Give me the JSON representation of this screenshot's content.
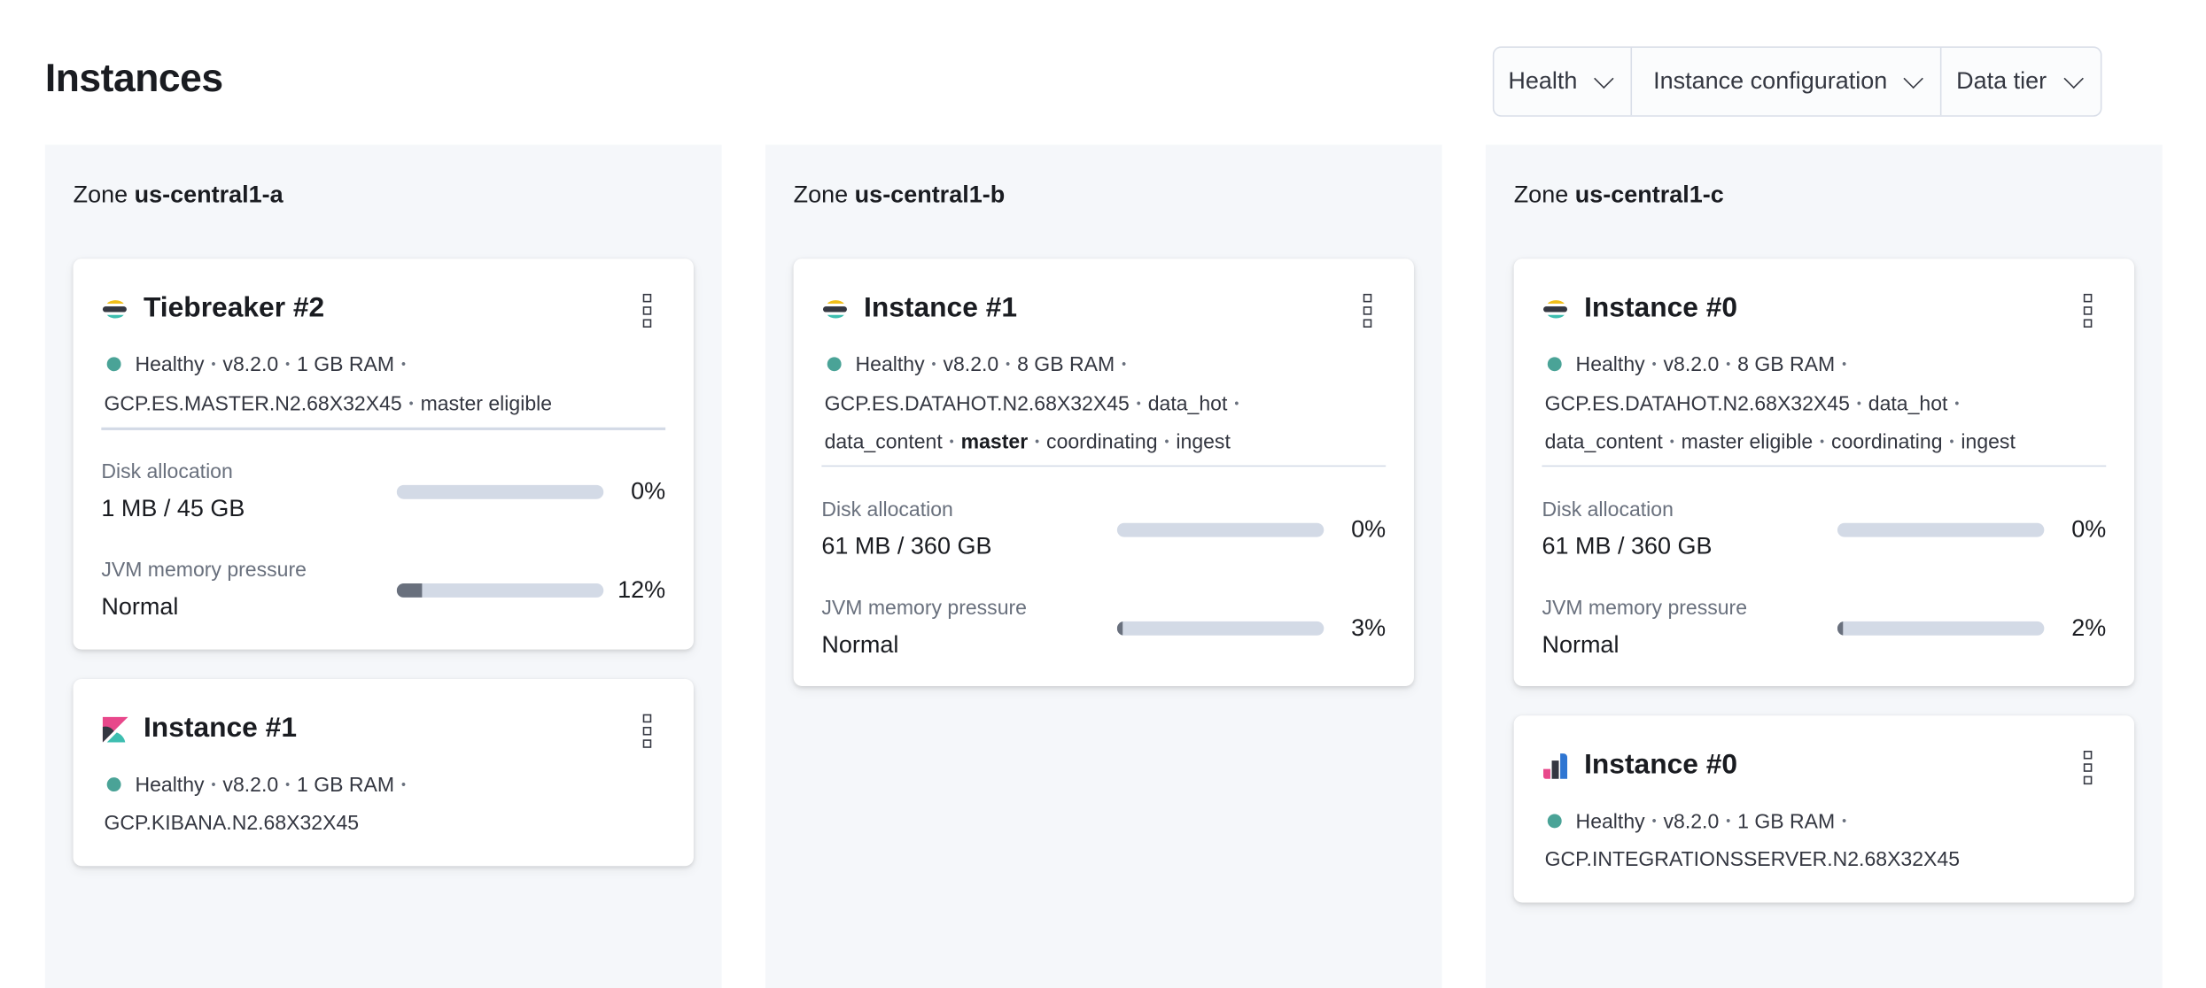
{
  "page": {
    "title": "Instances"
  },
  "filters": [
    {
      "label": "Health",
      "icon": "chevron-down-icon"
    },
    {
      "label": "Instance configuration",
      "icon": "chevron-down-icon"
    },
    {
      "label": "Data tier",
      "icon": "chevron-down-icon"
    }
  ],
  "colors": {
    "healthy": "#4aa397",
    "bar_track": "#d3dae6",
    "bar_fill": "#69707d",
    "zone_bg": "#f5f7fa"
  },
  "zones": [
    {
      "prefix": "Zone",
      "name": "us-central1-a",
      "cards": [
        {
          "icon": "elasticsearch-logo-icon",
          "title": "Tiebreaker #2",
          "lines": [
            [
              {
                "t": "Healthy",
                "status": true
              },
              {
                "t": "v8.2.0"
              },
              {
                "t": "1 GB RAM",
                "trail": true
              }
            ],
            [
              {
                "t": "GCP.ES.MASTER.N2.68X32X45"
              },
              {
                "t": "master eligible"
              }
            ]
          ],
          "metrics": [
            {
              "label": "Disk allocation",
              "value": "1 MB / 45 GB",
              "percent": 0,
              "percent_label": "0%"
            },
            {
              "label": "JVM memory pressure",
              "value": "Normal",
              "percent": 12,
              "percent_label": "12%"
            }
          ]
        },
        {
          "icon": "kibana-logo-icon",
          "title": "Instance #1",
          "lines": [
            [
              {
                "t": "Healthy",
                "status": true
              },
              {
                "t": "v8.2.0"
              },
              {
                "t": "1 GB RAM",
                "trail": true
              }
            ],
            [
              {
                "t": "GCP.KIBANA.N2.68X32X45"
              }
            ]
          ],
          "metrics": []
        }
      ]
    },
    {
      "prefix": "Zone",
      "name": "us-central1-b",
      "cards": [
        {
          "icon": "elasticsearch-logo-icon",
          "title": "Instance #1",
          "lines": [
            [
              {
                "t": "Healthy",
                "status": true
              },
              {
                "t": "v8.2.0"
              },
              {
                "t": "8 GB RAM",
                "trail": true
              }
            ],
            [
              {
                "t": "GCP.ES.DATAHOT.N2.68X32X45"
              },
              {
                "t": "data_hot",
                "trail": true
              }
            ],
            [
              {
                "t": "data_content"
              },
              {
                "t": "master",
                "bold": true
              },
              {
                "t": "coordinating"
              },
              {
                "t": "ingest"
              }
            ]
          ],
          "metrics": [
            {
              "label": "Disk allocation",
              "value": "61 MB / 360 GB",
              "percent": 0,
              "percent_label": "0%"
            },
            {
              "label": "JVM memory pressure",
              "value": "Normal",
              "percent": 3,
              "percent_label": "3%"
            }
          ]
        }
      ]
    },
    {
      "prefix": "Zone",
      "name": "us-central1-c",
      "cards": [
        {
          "icon": "elasticsearch-logo-icon",
          "title": "Instance #0",
          "lines": [
            [
              {
                "t": "Healthy",
                "status": true
              },
              {
                "t": "v8.2.0"
              },
              {
                "t": "8 GB RAM",
                "trail": true
              }
            ],
            [
              {
                "t": "GCP.ES.DATAHOT.N2.68X32X45"
              },
              {
                "t": "data_hot",
                "trail": true
              }
            ],
            [
              {
                "t": "data_content"
              },
              {
                "t": "master eligible"
              },
              {
                "t": "coordinating"
              },
              {
                "t": "ingest"
              }
            ]
          ],
          "metrics": [
            {
              "label": "Disk allocation",
              "value": "61 MB / 360 GB",
              "percent": 0,
              "percent_label": "0%"
            },
            {
              "label": "JVM memory pressure",
              "value": "Normal",
              "percent": 2,
              "percent_label": "2%"
            }
          ]
        },
        {
          "icon": "integrations-server-logo-icon",
          "title": "Instance #0",
          "lines": [
            [
              {
                "t": "Healthy",
                "status": true
              },
              {
                "t": "v8.2.0"
              },
              {
                "t": "1 GB RAM",
                "trail": true
              }
            ],
            [
              {
                "t": "GCP.INTEGRATIONSSERVER.N2.68X32X45"
              }
            ]
          ],
          "metrics": []
        }
      ]
    }
  ]
}
